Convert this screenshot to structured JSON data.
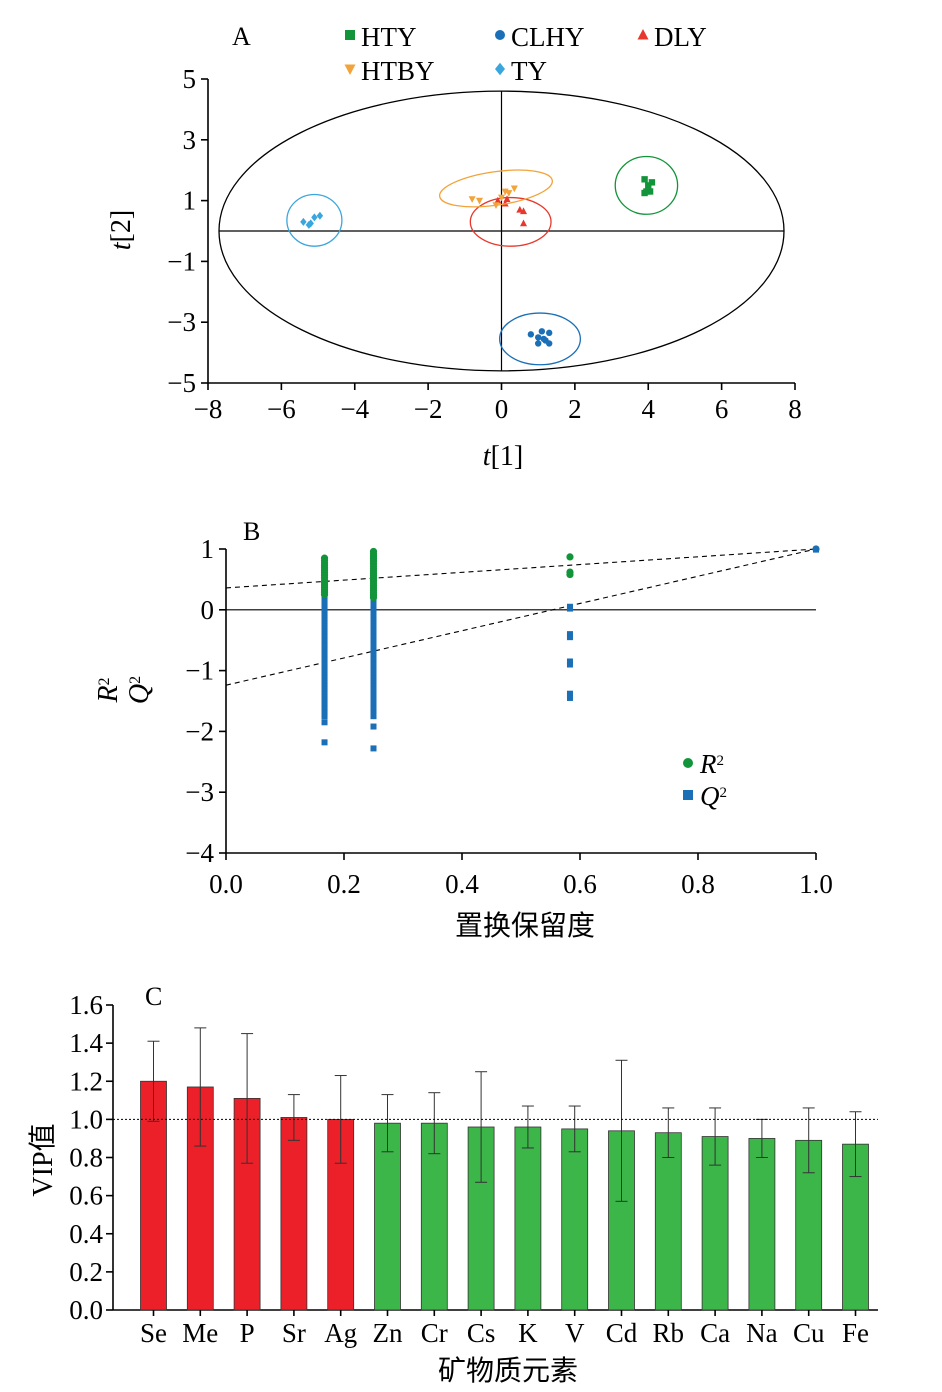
{
  "colors": {
    "HTY": "#12953a",
    "CLHY": "#1b6fb6",
    "DLY": "#e8382d",
    "HTBY": "#f2a33a",
    "TY": "#3aa6de",
    "R2": "#12953a",
    "Q2": "#1b6fb6",
    "vip_high": "#ec2028",
    "vip_low": "#3cb549"
  },
  "chart_data": [
    {
      "panel": "A",
      "type": "scatter",
      "xlabel_italic": "t",
      "xlabel_rest": "[1]",
      "ylabel_italic": "t",
      "ylabel_rest": "[2]",
      "xlim": [
        -8,
        8
      ],
      "ylim": [
        -5,
        5
      ],
      "xticks": [
        "−8",
        "−6",
        "−4",
        "−2",
        "0",
        "2",
        "4",
        "6",
        "8"
      ],
      "yticks": [
        "5",
        "3",
        "1",
        "−1",
        "−3",
        "−5"
      ],
      "hotelling_ellipse": {
        "cx": 0,
        "cy": 0,
        "rx": 7.7,
        "ry": 4.6
      },
      "series": [
        {
          "name": "HTY",
          "marker": "square",
          "points": [
            [
              3.9,
              1.7
            ],
            [
              4.1,
              1.6
            ],
            [
              4.0,
              1.5
            ],
            [
              3.95,
              1.3
            ],
            [
              3.9,
              1.25
            ],
            [
              4.05,
              1.3
            ]
          ],
          "ellipse": {
            "cx": 3.95,
            "cy": 1.5,
            "rx": 0.85,
            "ry": 0.95
          }
        },
        {
          "name": "CLHY",
          "marker": "circle",
          "points": [
            [
              0.8,
              -3.4
            ],
            [
              1.0,
              -3.5
            ],
            [
              1.1,
              -3.3
            ],
            [
              1.2,
              -3.6
            ],
            [
              1.3,
              -3.35
            ],
            [
              1.0,
              -3.7
            ],
            [
              1.3,
              -3.7
            ],
            [
              1.15,
              -3.55
            ]
          ],
          "ellipse": {
            "cx": 1.05,
            "cy": -3.55,
            "rx": 1.1,
            "ry": 0.85
          }
        },
        {
          "name": "DLY",
          "marker": "triangle-up",
          "points": [
            [
              -0.1,
              1.0
            ],
            [
              0.1,
              0.9
            ],
            [
              0.5,
              0.7
            ],
            [
              0.6,
              0.65
            ],
            [
              0.6,
              0.25
            ],
            [
              0.15,
              1.05
            ]
          ],
          "ellipse": {
            "cx": 0.25,
            "cy": 0.3,
            "rx": 1.1,
            "ry": 0.8
          }
        },
        {
          "name": "HTBY",
          "marker": "triangle-down",
          "points": [
            [
              -0.8,
              1.05
            ],
            [
              -0.6,
              1.0
            ],
            [
              -0.15,
              0.85
            ],
            [
              0.0,
              1.1
            ],
            [
              0.2,
              1.25
            ],
            [
              0.35,
              1.4
            ],
            [
              0.1,
              1.3
            ]
          ],
          "ellipse": {
            "cx": -0.15,
            "cy": 1.4,
            "rx": 1.55,
            "ry": 0.55,
            "angle": -8
          }
        },
        {
          "name": "TY",
          "marker": "diamond",
          "points": [
            [
              -5.4,
              0.3
            ],
            [
              -5.2,
              0.25
            ],
            [
              -5.1,
              0.45
            ],
            [
              -4.95,
              0.5
            ],
            [
              -5.25,
              0.2
            ]
          ],
          "ellipse": {
            "cx": -5.1,
            "cy": 0.35,
            "rx": 0.75,
            "ry": 0.85
          }
        }
      ]
    },
    {
      "panel": "B",
      "type": "scatter",
      "xlabel": "置换保留度",
      "ylabel": [
        "R",
        "Q"
      ],
      "xlim": [
        0,
        1
      ],
      "ylim": [
        -4,
        1
      ],
      "xticks": [
        "0.0",
        "0.2",
        "0.4",
        "0.6",
        "0.8",
        "1.0"
      ],
      "yticks": [
        "1",
        "0",
        "−1",
        "−2",
        "−3",
        "−4"
      ],
      "legend": [
        {
          "name": "R",
          "sup": "2",
          "marker": "circle"
        },
        {
          "name": "Q",
          "sup": "2",
          "marker": "square"
        }
      ],
      "regression_lines": [
        {
          "series": "R2",
          "intercept": 0.36,
          "slope": 0.64
        },
        {
          "series": "Q2",
          "intercept": -1.24,
          "slope": 2.24
        }
      ],
      "series": [
        {
          "name": "R2",
          "points_x": [
            0.167,
            0.25,
            0.583,
            1.0
          ],
          "y_ranges": [
            [
              0.25,
              0.85
            ],
            [
              0.2,
              0.99
            ],
            [
              0.55,
              0.87
            ],
            [
              1.0,
              1.0
            ]
          ],
          "extra_points": [
            [
              0.583,
              0.62
            ],
            [
              0.583,
              0.58
            ]
          ]
        },
        {
          "name": "Q2",
          "points_x": [
            0.167,
            0.25,
            0.583,
            1.0
          ],
          "y_ranges": [
            [
              -1.75,
              0.4
            ],
            [
              -1.75,
              0.55
            ],
            [
              -1.45,
              0.5
            ],
            [
              0.99,
              0.99
            ]
          ],
          "outliers": [
            [
              0.167,
              -1.85
            ],
            [
              0.167,
              -2.18
            ],
            [
              0.25,
              -1.92
            ],
            [
              0.25,
              -2.28
            ],
            [
              0.583,
              -0.4
            ],
            [
              0.583,
              -0.45
            ],
            [
              0.583,
              -0.85
            ],
            [
              0.583,
              -0.9
            ],
            [
              0.583,
              -1.38
            ],
            [
              0.583,
              -1.45
            ],
            [
              0.583,
              0.05
            ],
            [
              0.583,
              0.02
            ]
          ]
        }
      ]
    },
    {
      "panel": "C",
      "type": "bar",
      "ylabel": "VIP值",
      "xlabel": "矿物质元素",
      "ylim": [
        0,
        1.6
      ],
      "yticks": [
        "0.0",
        "0.2",
        "0.4",
        "0.6",
        "0.8",
        "1.0",
        "1.2",
        "1.4",
        "1.6"
      ],
      "threshold": 1.0,
      "categories": [
        "Se",
        "Me",
        "P",
        "Sr",
        "Ag",
        "Zn",
        "Cr",
        "Cs",
        "K",
        "V",
        "Cd",
        "Rb",
        "Ca",
        "Na",
        "Cu",
        "Fe"
      ],
      "values": [
        1.2,
        1.17,
        1.11,
        1.01,
        1.0,
        0.98,
        0.98,
        0.96,
        0.96,
        0.95,
        0.94,
        0.93,
        0.91,
        0.9,
        0.89,
        0.87
      ],
      "errors": [
        0.21,
        0.31,
        0.34,
        0.12,
        0.23,
        0.15,
        0.16,
        0.29,
        0.11,
        0.12,
        0.37,
        0.13,
        0.15,
        0.1,
        0.17,
        0.17
      ]
    }
  ]
}
